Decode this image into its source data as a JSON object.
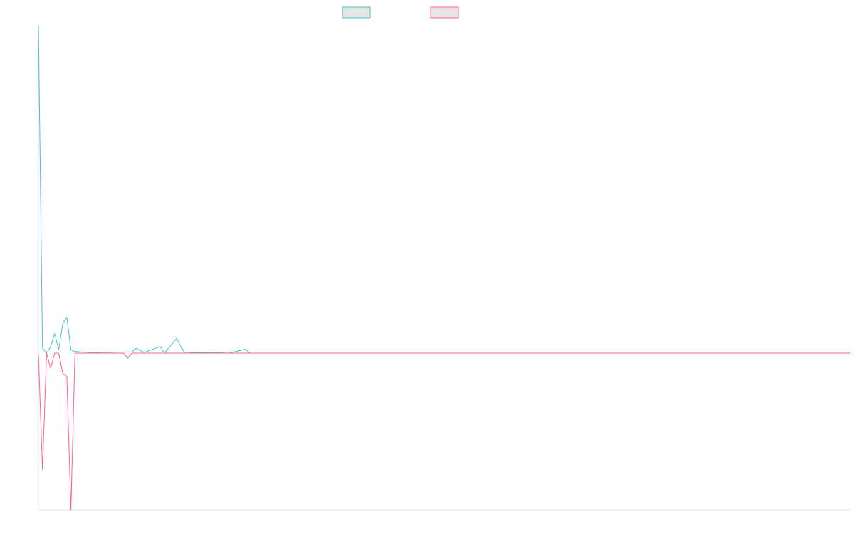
{
  "colors": {
    "series_positive": "#4bc0c0",
    "series_negative": "#ff6384",
    "legend_fill": "#e6e6e6",
    "axis": "#e0e0e0"
  },
  "chart_data": {
    "type": "line",
    "title": "",
    "xlabel": "",
    "ylabel": "",
    "grid": false,
    "legend_position": "top-center",
    "x_count": 200,
    "ylim": [
      -470,
      1000
    ],
    "series": [
      {
        "color": "#4bc0c0",
        "points": [
          [
            0,
            1000
          ],
          [
            1,
            15
          ],
          [
            2,
            0
          ],
          [
            3,
            20
          ],
          [
            4,
            60
          ],
          [
            5,
            10
          ],
          [
            6,
            90
          ],
          [
            7,
            110
          ],
          [
            8,
            10
          ],
          [
            9,
            5
          ],
          [
            13,
            2
          ],
          [
            23,
            4
          ],
          [
            24,
            15
          ],
          [
            26,
            2
          ],
          [
            30,
            20
          ],
          [
            31,
            0
          ],
          [
            34,
            45
          ],
          [
            36,
            0
          ],
          [
            39,
            2
          ],
          [
            41,
            1
          ],
          [
            45,
            1
          ],
          [
            47,
            0
          ],
          [
            51,
            12
          ],
          [
            52,
            0
          ],
          [
            200,
            0
          ]
        ]
      },
      {
        "color": "#ff6384",
        "points": [
          [
            0,
            -5
          ],
          [
            1,
            -350
          ],
          [
            2,
            0
          ],
          [
            3,
            -45
          ],
          [
            4,
            0
          ],
          [
            5,
            0
          ],
          [
            6,
            -60
          ],
          [
            7,
            -70
          ],
          [
            8,
            -470
          ],
          [
            9,
            0
          ],
          [
            21,
            0
          ],
          [
            22,
            -15
          ],
          [
            23,
            0
          ],
          [
            200,
            0
          ]
        ]
      }
    ]
  }
}
